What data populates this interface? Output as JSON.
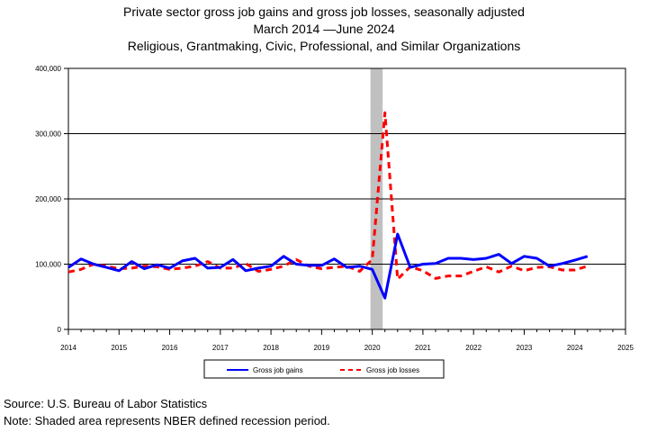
{
  "title": "Private sector gross job gains and gross job losses, seasonally adjusted",
  "subtitle_dates": "March 2014 —June 2024",
  "subtitle_industry": "Religious, Grantmaking, Civic, Professional, and Similar Organizations",
  "source": "Source: U.S. Bureau of Labor Statistics",
  "note": "Note: Shaded area represents NBER defined recession period.",
  "chart_data": {
    "type": "line",
    "title": "Private sector gross job gains and gross job losses, seasonally adjusted",
    "xlabel": "",
    "ylabel": "",
    "xlim": [
      2014,
      2025
    ],
    "ylim": [
      0,
      400000
    ],
    "x_ticks": [
      "2014",
      "2015",
      "2016",
      "2017",
      "2018",
      "2019",
      "2020",
      "2021",
      "2022",
      "2023",
      "2024",
      "2025"
    ],
    "y_ticks": [
      "0",
      "100,000",
      "200,000",
      "300,000",
      "400,000"
    ],
    "recession": [
      2020.0,
      2020.17
    ],
    "grid": "horizontal",
    "legend_position": "bottom",
    "colors": {
      "gains": "#0000ff",
      "losses": "#ff0000",
      "recession": "#c0c0c0"
    },
    "x": [
      2014.0,
      2014.25,
      2014.5,
      2014.75,
      2015.0,
      2015.25,
      2015.5,
      2015.75,
      2016.0,
      2016.25,
      2016.5,
      2016.75,
      2017.0,
      2017.25,
      2017.5,
      2017.75,
      2018.0,
      2018.25,
      2018.5,
      2018.75,
      2019.0,
      2019.25,
      2019.5,
      2019.75,
      2020.0,
      2020.25,
      2020.5,
      2020.75,
      2021.0,
      2021.25,
      2021.5,
      2021.75,
      2022.0,
      2022.25,
      2022.5,
      2022.75,
      2023.0,
      2023.25,
      2023.5,
      2023.75,
      2024.0,
      2024.25
    ],
    "series": [
      {
        "name": "Gross job gains",
        "values": [
          95000,
          108000,
          100000,
          95000,
          90000,
          104000,
          93000,
          99000,
          94000,
          105000,
          109000,
          94000,
          95000,
          107000,
          90000,
          94000,
          97000,
          112000,
          100000,
          98000,
          98000,
          108000,
          95000,
          97000,
          92000,
          48000,
          146000,
          95000,
          100000,
          101000,
          109000,
          109000,
          107000,
          109000,
          115000,
          101000,
          112000,
          109000,
          97000,
          101000,
          106000,
          112000
        ]
      },
      {
        "name": "Gross job losses",
        "values": [
          88000,
          92000,
          100000,
          97000,
          93000,
          94000,
          97000,
          96000,
          92000,
          94000,
          97000,
          104000,
          94000,
          94000,
          101000,
          89000,
          92000,
          97000,
          107000,
          97000,
          93000,
          95000,
          97000,
          89000,
          107000,
          332000,
          77000,
          96000,
          90000,
          78000,
          82000,
          82000,
          89000,
          96000,
          88000,
          97000,
          90000,
          95000,
          96000,
          91000,
          91000,
          97000
        ]
      }
    ]
  }
}
